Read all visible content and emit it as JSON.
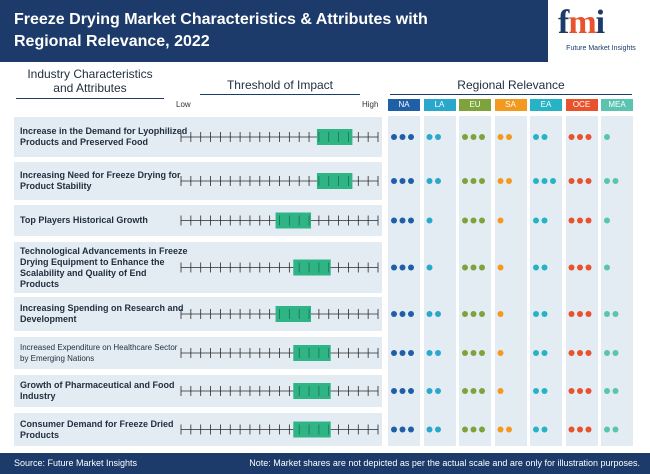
{
  "header": {
    "title": "Freeze Drying Market Characteristics & Attributes with Regional Relevance, 2022",
    "logo_mark": "fmi",
    "logo_text": "Future Market Insights"
  },
  "columns": {
    "industry": "Industry Characteristics and Attributes",
    "impact": "Threshold of Impact",
    "region": "Regional Relevance",
    "low": "Low",
    "high": "High"
  },
  "regions": [
    {
      "label": "NA",
      "color": "#1f5fa8",
      "dot": "#1f5fa8"
    },
    {
      "label": "LA",
      "color": "#2aa7cc",
      "dot": "#2aa7cc"
    },
    {
      "label": "EU",
      "color": "#7fa33b",
      "dot": "#7fa33b"
    },
    {
      "label": "SA",
      "color": "#f39a1e",
      "dot": "#f39a1e"
    },
    {
      "label": "EA",
      "color": "#26b3c5",
      "dot": "#26b3c5"
    },
    {
      "label": "OCE",
      "color": "#e8522c",
      "dot": "#e8522c"
    },
    {
      "label": "MEA",
      "color": "#5ac4b0",
      "dot": "#5ac4b0"
    }
  ],
  "chart_data": {
    "type": "table",
    "scale_ticks": 20,
    "rows": [
      {
        "label": "Increase in the Demand for Lyophilized Products and Preserved Food",
        "impact_start": 0.69,
        "impact_end": 0.87,
        "relevance": [
          3,
          2,
          3,
          2,
          2,
          3,
          1
        ]
      },
      {
        "label": "Increasing Need for Freeze Drying for Product Stability",
        "impact_start": 0.69,
        "impact_end": 0.87,
        "relevance": [
          3,
          2,
          3,
          2,
          3,
          3,
          2
        ]
      },
      {
        "label": "Top Players Historical Growth",
        "impact_start": 0.48,
        "impact_end": 0.66,
        "relevance": [
          3,
          1,
          3,
          1,
          2,
          3,
          1
        ]
      },
      {
        "label": "Technological Advancements in Freeze Drying Equipment to Enhance the Scalability and Quality of End Products",
        "impact_start": 0.57,
        "impact_end": 0.76,
        "relevance": [
          3,
          1,
          3,
          1,
          2,
          3,
          1
        ]
      },
      {
        "label": "Increasing Spending on Research and Development",
        "impact_start": 0.48,
        "impact_end": 0.66,
        "relevance": [
          3,
          2,
          3,
          1,
          2,
          3,
          2
        ]
      },
      {
        "label": "Increased Expenditure on Healthcare Sector by Emerging Nations",
        "impact_start": 0.57,
        "impact_end": 0.76,
        "relevance": [
          3,
          2,
          3,
          1,
          2,
          3,
          2
        ]
      },
      {
        "label": "Growth of Pharmaceutical and Food Industry",
        "impact_start": 0.57,
        "impact_end": 0.76,
        "relevance": [
          3,
          2,
          3,
          1,
          2,
          3,
          2
        ]
      },
      {
        "label": "Consumer Demand for Freeze Dried Products",
        "impact_start": 0.57,
        "impact_end": 0.76,
        "relevance": [
          3,
          2,
          3,
          2,
          2,
          3,
          2
        ]
      }
    ]
  },
  "footer": {
    "source": "Source: Future Market Insights",
    "note": "Note: Market shares are not depicted as per the actual scale and are only for illustration purposes."
  }
}
